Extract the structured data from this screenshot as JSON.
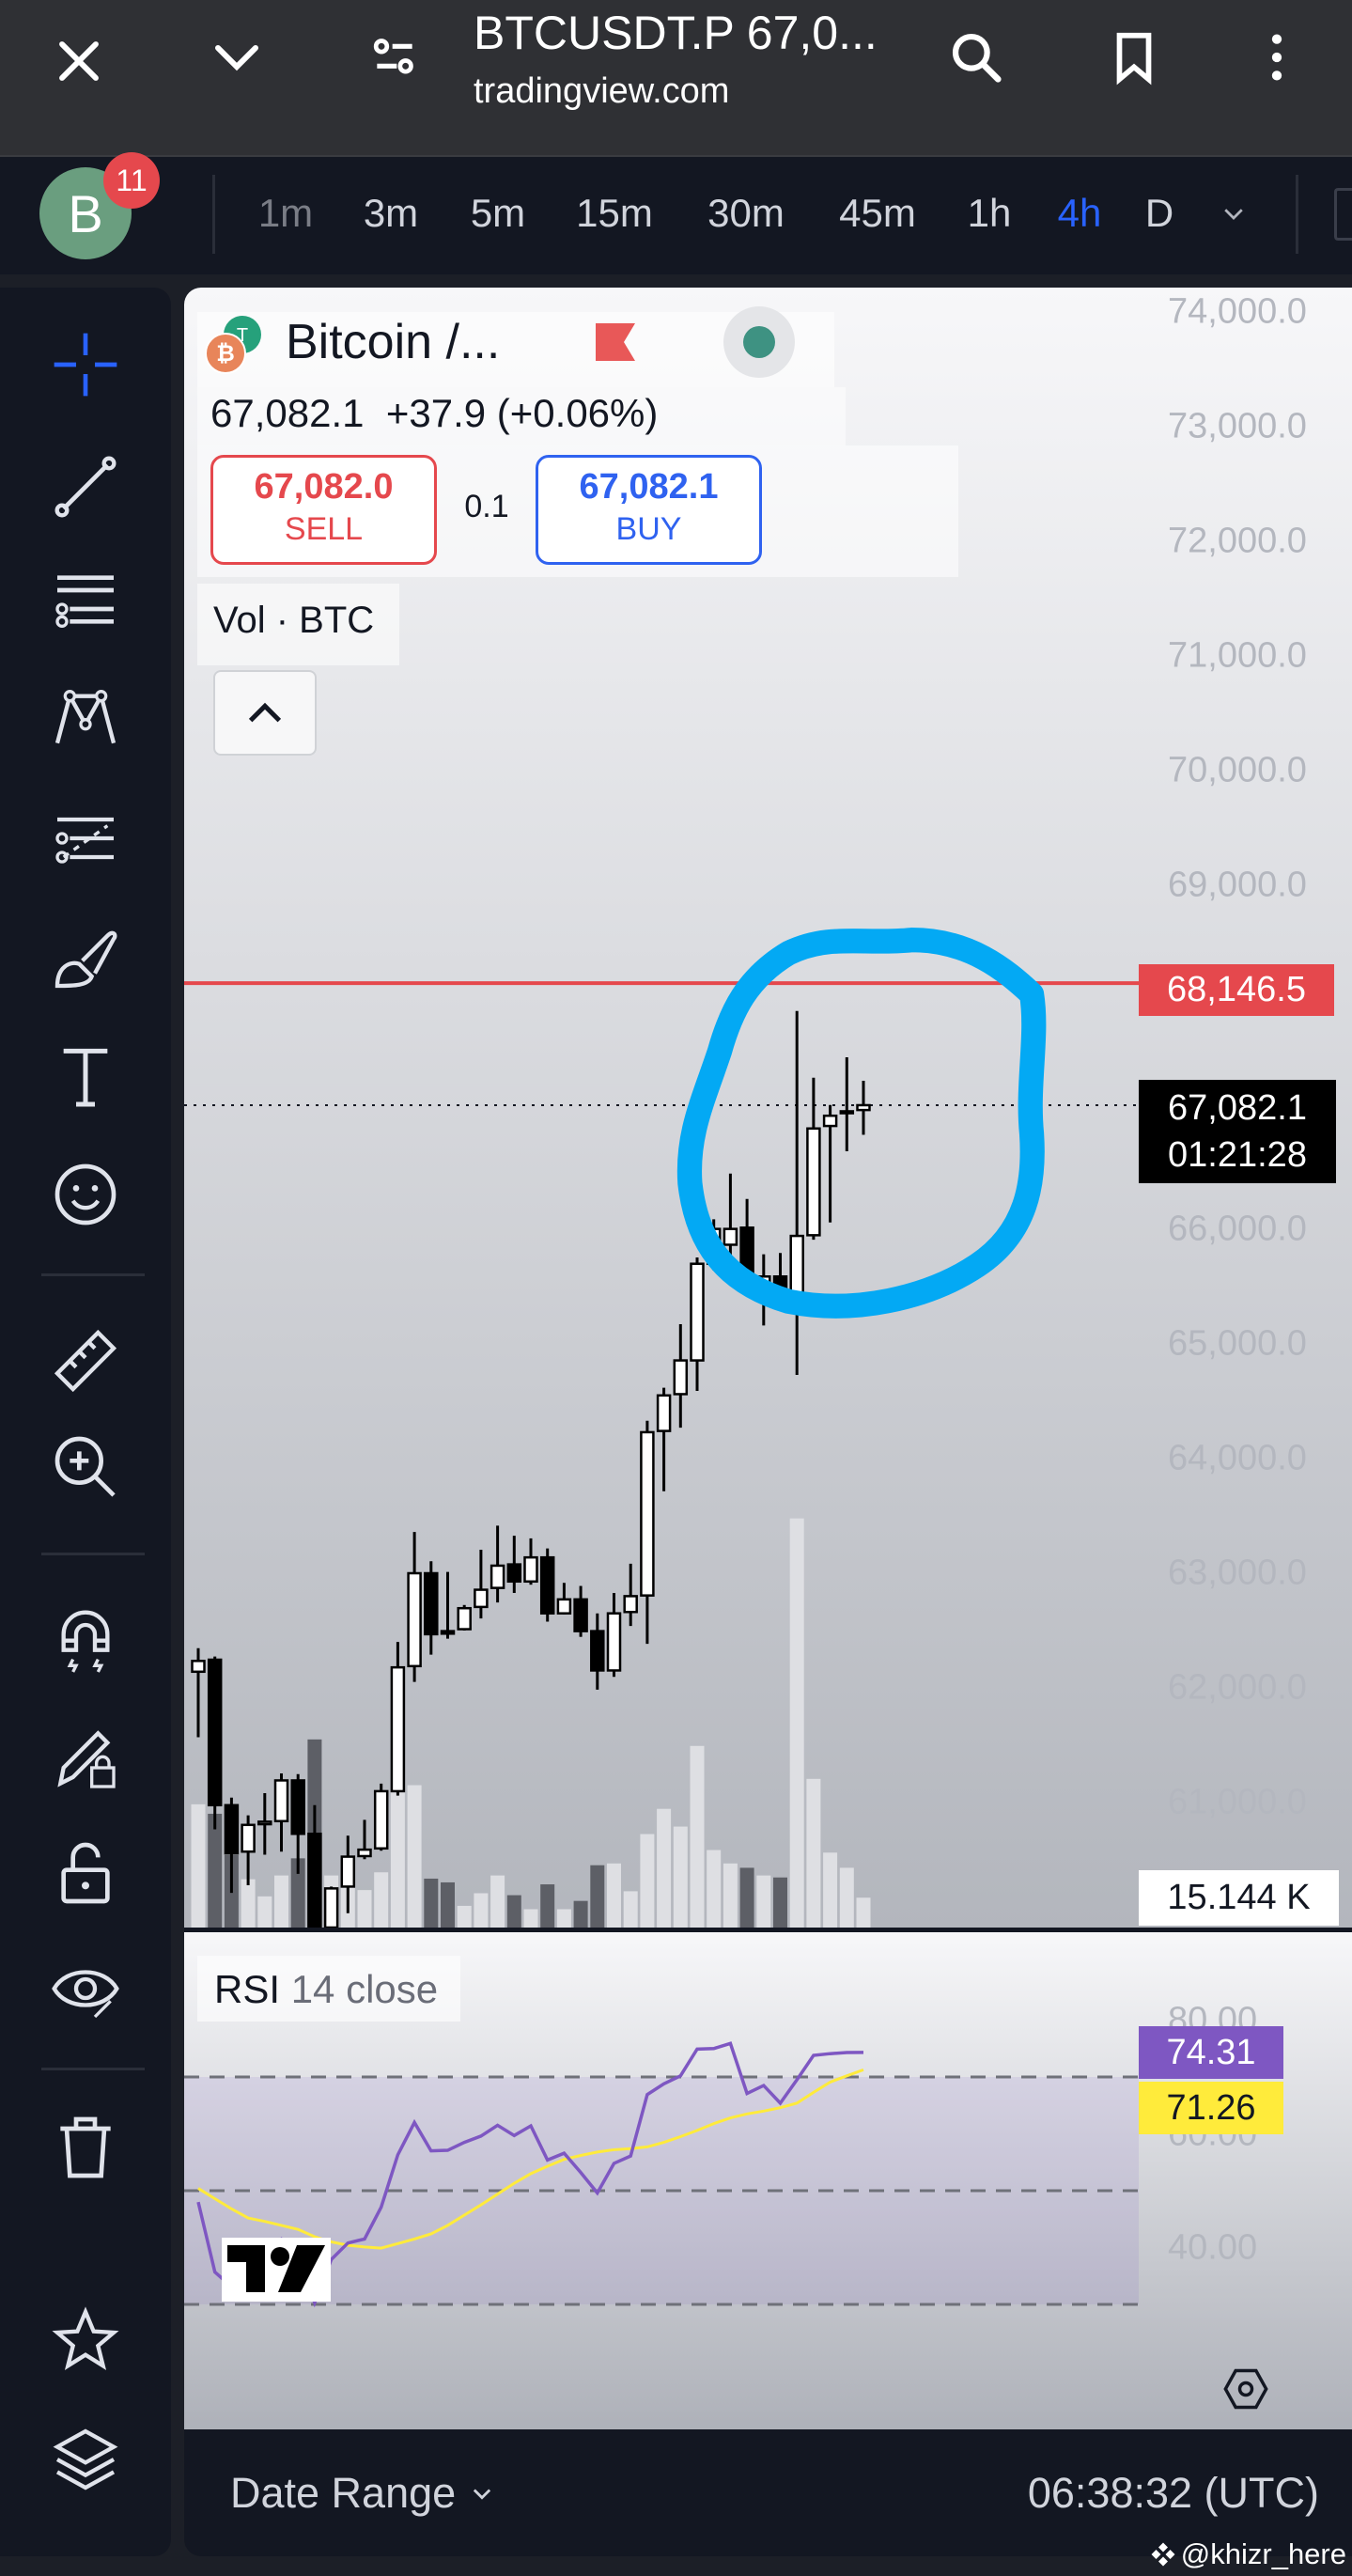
{
  "browser": {
    "title": "BTCUSDT.P 67,0...",
    "domain": "tradingview.com"
  },
  "toolbar": {
    "avatar_letter": "B",
    "badge_count": "11",
    "intervals": [
      "1m",
      "3m",
      "5m",
      "15m",
      "30m",
      "45m",
      "1h",
      "4h",
      "D"
    ],
    "active_interval": "4h"
  },
  "sidebar": {
    "icons": [
      "crosshair-icon",
      "trend-line-icon",
      "fib-icon",
      "pattern-icon",
      "forecast-icon",
      "brush-icon",
      "text-icon",
      "emoji-icon",
      "ruler-icon",
      "zoom-in-icon",
      "magnet-icon",
      "lock-drawing-icon",
      "lock-icon",
      "eye-icon",
      "trash-icon",
      "star-icon",
      "layers-icon"
    ]
  },
  "legend": {
    "symbol": "Bitcoin /...",
    "last": "67,082.1",
    "change": "+37.9 (+0.06%)",
    "sell_price": "67,082.0",
    "sell_label": "SELL",
    "spread": "0.1",
    "buy_price": "67,082.1",
    "buy_label": "BUY",
    "volume_label": "Vol · BTC"
  },
  "price_axis": {
    "labels": [
      "74,000.0",
      "73,000.0",
      "72,000.0",
      "71,000.0",
      "70,000.0",
      "69,000.0",
      "66,000.0",
      "65,000.0",
      "64,000.0",
      "63,000.0",
      "62,000.0",
      "61,000.0"
    ],
    "alert_price": "68,146.5",
    "current_price": "67,082.1",
    "countdown": "01:21:28",
    "volume_value": "15.144 K"
  },
  "rsi": {
    "title": "RSI",
    "params": "14 close",
    "axis": [
      "80.00",
      "60.00",
      "40.00"
    ],
    "rsi_value": "74.31",
    "ma_value": "71.26"
  },
  "bottom": {
    "date_range": "Date Range",
    "time": "06:38:32 (UTC)"
  },
  "watermark": "@khizr_here",
  "colors": {
    "up": "#ffffff",
    "down": "#000000",
    "alert_line": "#e5484d",
    "rsi_line": "#7e57c2",
    "rsi_ma": "#ffeb3b",
    "annotation": "#03a9f4",
    "active_interval": "#2962ff",
    "sell": "#e5484d",
    "buy": "#2f62f0"
  },
  "chart_data": [
    {
      "type": "candlestick",
      "timeframe": "4h",
      "ylim": [
        60500,
        74000
      ],
      "alert_line": 68146.5,
      "last": 67082.1,
      "ohlc": [
        [
          62141,
          62346,
          61570,
          62235
        ],
        [
          62246,
          62274,
          60766,
          60977
        ],
        [
          60977,
          61043,
          60212,
          60556
        ],
        [
          60572,
          60888,
          60279,
          60805
        ],
        [
          60811,
          61082,
          60545,
          60833
        ],
        [
          60838,
          61254,
          60572,
          61193
        ],
        [
          61193,
          61248,
          60378,
          60727
        ],
        [
          60727,
          60977,
          59658,
          59879
        ],
        [
          59700,
          60267,
          59500,
          60251
        ],
        [
          60267,
          60711,
          60035,
          60528
        ],
        [
          60533,
          60849,
          60506,
          60589
        ],
        [
          60600,
          61165,
          60580,
          61099
        ],
        [
          61099,
          62401,
          61060,
          62179
        ],
        [
          62190,
          63360,
          62052,
          63000
        ],
        [
          63000,
          63105,
          62290,
          62468
        ],
        [
          62495,
          63011,
          62429,
          62473
        ],
        [
          62512,
          62723,
          62500,
          62695
        ],
        [
          62706,
          63205,
          62606,
          62856
        ],
        [
          62872,
          63415,
          62745,
          63066
        ],
        [
          63077,
          63327,
          62828,
          62928
        ],
        [
          62928,
          63304,
          62900,
          63138
        ],
        [
          63138,
          63216,
          62578,
          62650
        ],
        [
          62650,
          62916,
          62640,
          62772
        ],
        [
          62772,
          62889,
          62445,
          62495
        ],
        [
          62495,
          62650,
          61985,
          62152
        ],
        [
          62152,
          62828,
          62096,
          62650
        ],
        [
          62662,
          63083,
          62540,
          62800
        ],
        [
          62806,
          64330,
          62384,
          64230
        ],
        [
          64241,
          64618,
          63715,
          64551
        ],
        [
          64562,
          65172,
          64269,
          64856
        ],
        [
          64856,
          65754,
          64590,
          65699
        ],
        [
          65699,
          66087,
          65643,
          66003
        ],
        [
          65865,
          66486,
          65643,
          66003
        ],
        [
          66014,
          66264,
          65505,
          65577
        ],
        [
          65505,
          65782,
          65161,
          65588
        ],
        [
          65588,
          65793,
          65449,
          65488
        ],
        [
          65449,
          67904,
          64729,
          65942
        ],
        [
          65948,
          67322,
          65909,
          66879
        ],
        [
          66901,
          67084,
          66059,
          66990
        ],
        [
          67012,
          67500,
          66680,
          67029
        ],
        [
          67040,
          67295,
          66824,
          67082.1
        ]
      ],
      "volume_k": [
        62.5,
        57.7,
        36.7,
        24.5,
        15.8,
        26.4,
        35.1,
        95.4,
        26.4,
        22.2,
        19,
        28,
        72.2,
        72.2,
        24.8,
        22.9,
        11,
        17.4,
        26.4,
        16.4,
        9.3,
        21.9,
        9.3,
        13.5,
        31.6,
        32.5,
        18.4,
        47.4,
        60.2,
        51.2,
        92.1,
        39.3,
        32.5,
        30.3,
        26.4,
        25.4,
        207.5,
        75.4,
        38,
        30.3,
        15.144
      ]
    },
    {
      "type": "line",
      "name": "RSI 14 close",
      "levels": [
        70,
        50,
        30
      ],
      "ylim": [
        20,
        85
      ],
      "rsi": [
        48,
        35.7,
        33.1,
        36,
        39.7,
        41.5,
        39,
        30.3,
        37.9,
        40.8,
        41.5,
        47.1,
        56.3,
        62,
        57,
        57.1,
        58.5,
        59.6,
        61.5,
        59.7,
        61.4,
        55.4,
        56.6,
        53.2,
        49.6,
        54.8,
        56.1,
        66.9,
        68.8,
        70.2,
        74.9,
        75,
        75.9,
        67.1,
        68.5,
        65.4,
        69.5,
        73.8,
        74.1,
        74.3,
        74.31
      ],
      "rsi_ma": [
        50.4,
        48.6,
        46.8,
        45.2,
        44.6,
        43.9,
        43.2,
        41.9,
        41,
        40.4,
        40.1,
        39.9,
        40.7,
        41.5,
        42.4,
        43.9,
        45.7,
        47.5,
        49.4,
        51.3,
        53,
        54.3,
        55.5,
        56.2,
        56.8,
        57.2,
        57.4,
        57.7,
        58.5,
        59.5,
        60.6,
        61.8,
        62.8,
        63.5,
        64,
        64.6,
        65.4,
        67.3,
        69.1,
        70.2,
        71.26
      ]
    }
  ]
}
